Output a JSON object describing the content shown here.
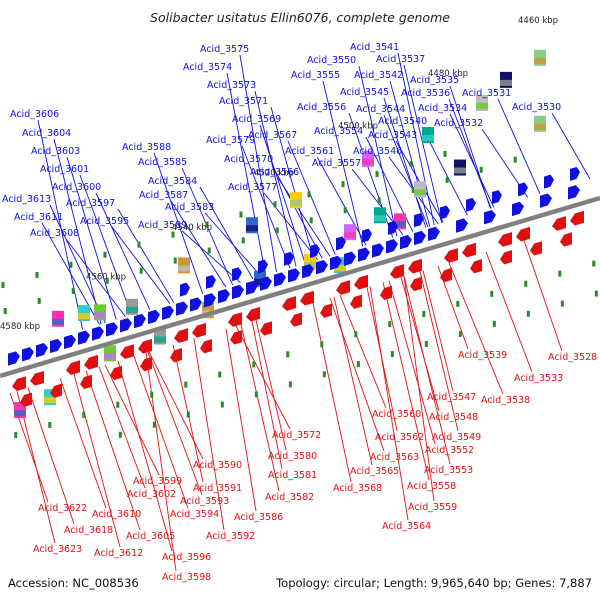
{
  "title": "Solibacter usitatus Ellin6076, complete genome",
  "footer": {
    "accession": "Accession: NC_008536",
    "summary": "Topology: circular; Length: 9,965,640 bp; Genes: 7,887"
  },
  "colors": {
    "forward_gene": "#1010e0",
    "reverse_gene": "#e01010",
    "backbone": "#808080",
    "tick": "#2a8a2a",
    "scale_text": "#222222"
  },
  "scale_labels": [
    "4460 kbp",
    "4480 kbp",
    "4500 kbp",
    "4520 kbp",
    "4540 kbp",
    "4560 kbp",
    "4580 kbp"
  ],
  "top_labels": [
    "Acid_3606",
    "Acid_3604",
    "Acid_3603",
    "Acid_3601",
    "Acid_3600",
    "Acid_3613",
    "Acid_3597",
    "Acid_3611",
    "Acid_3595",
    "Acid_3608",
    "Acid_3575",
    "Acid_3574",
    "Acid_3573",
    "Acid_3571",
    "Acid_3569",
    "Acid_3588",
    "Acid_3579",
    "Acid_3567",
    "Acid_3585",
    "Acid_3570",
    "Acid_3584",
    "Acid_3566",
    "Acid_3587",
    "Acid_3577",
    "Acid_3583",
    "Acid_3589",
    "Acid_3541",
    "Acid_3550",
    "Acid_3537",
    "Acid_3555",
    "Acid_3542",
    "Acid_3535",
    "Acid_3545",
    "Acid_3536",
    "Acid_3556",
    "Acid_3544",
    "Acid_3534",
    "Acid_3531",
    "Acid_3530",
    "Acid_3540",
    "Acid_3532",
    "Acid_3554",
    "Acid_3543",
    "Acid_3561",
    "Acid_3546",
    "Acid_3557"
  ],
  "bottom_labels": [
    "Acid_3539",
    "Acid_3528",
    "Acid_3533",
    "Acid_3538",
    "Acid_3547",
    "Acid_3548",
    "Acid_3560",
    "Acid_3572",
    "Acid_3562",
    "Acid_3549",
    "Acid_3552",
    "Acid_3563",
    "Acid_3580",
    "Acid_3565",
    "Acid_3553",
    "Acid_3590",
    "Acid_3581",
    "Acid_3568",
    "Acid_3558",
    "Acid_3599",
    "Acid_3591",
    "Acid_3582",
    "Acid_3602",
    "Acid_3593",
    "Acid_3559",
    "Acid_3622",
    "Acid_3610",
    "Acid_3594",
    "Acid_3586",
    "Acid_3564",
    "Acid_3618",
    "Acid_3605",
    "Acid_3592",
    "Acid_3623",
    "Acid_3612",
    "Acid_3596",
    "Acid_3598"
  ]
}
